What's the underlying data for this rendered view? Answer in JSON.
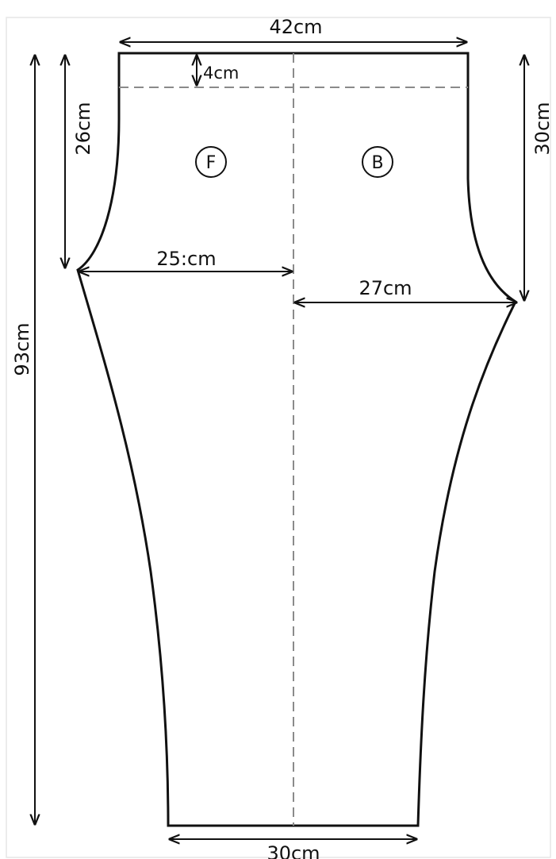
{
  "colors": {
    "background": "#ffffff",
    "outline": "#111111",
    "dashed_guide": "#8a8a8a",
    "frame_edge": "#e6e6e6"
  },
  "diagram": {
    "panels": {
      "front": "F",
      "back": "B"
    },
    "dimensions": {
      "waist_width": "42cm",
      "waistband_depth": "4cm",
      "front_rise": "26cm",
      "back_rise": "30cm",
      "front_crotch_width": "25:cm",
      "back_crotch_width": "27cm",
      "total_length": "93cm",
      "hem_width": "30cm"
    }
  }
}
